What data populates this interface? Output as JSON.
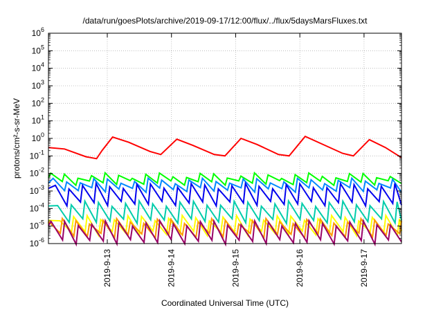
{
  "chart_data": {
    "type": "line",
    "title": "/data/run/goesPlots/archive/2019-09-17/12:00/flux/../flux/5daysMarsFluxes.txt",
    "xlabel": "Coordinated Universal Time (UTC)",
    "ylabel": "protons/cm²-s-sr-MeV",
    "yscale": "log",
    "ylim": [
      1e-06,
      1000000.0
    ],
    "y_ticks": [
      {
        "exp": "-6"
      },
      {
        "exp": "-5"
      },
      {
        "exp": "-4"
      },
      {
        "exp": "-3"
      },
      {
        "exp": "-2"
      },
      {
        "exp": "-1"
      },
      {
        "exp": "0"
      },
      {
        "exp": "1"
      },
      {
        "exp": "2"
      },
      {
        "exp": "3"
      },
      {
        "exp": "4"
      },
      {
        "exp": "5"
      },
      {
        "exp": "6"
      }
    ],
    "xlim": [
      "2019-09-12T02:00",
      "2019-09-17T14:00"
    ],
    "x_ticks": [
      "2019-9-13",
      "2019-9-14",
      "2019-9-15",
      "2019-9-16",
      "2019-9-17"
    ],
    "grid": true,
    "legend": "none",
    "series": [
      {
        "color": "#ff0000",
        "kind": "smooth",
        "x": [
          "2019-09-12T02:00",
          "2019-09-12T08:00",
          "2019-09-12T16:00",
          "2019-09-12T20:00",
          "2019-09-12T22:00",
          "2019-09-13T02:00",
          "2019-09-13T08:00",
          "2019-09-13T16:00",
          "2019-09-13T20:00",
          "2019-09-14T02:00",
          "2019-09-14T08:00",
          "2019-09-14T16:00",
          "2019-09-14T20:00",
          "2019-09-15T02:00",
          "2019-09-15T08:00",
          "2019-09-15T16:00",
          "2019-09-15T20:00",
          "2019-09-16T02:00",
          "2019-09-16T08:00",
          "2019-09-16T16:00",
          "2019-09-16T20:00",
          "2019-09-17T02:00",
          "2019-09-17T08:00",
          "2019-09-17T14:00"
        ],
        "y": [
          0.3,
          0.25,
          0.09,
          0.07,
          0.2,
          1.2,
          0.6,
          0.18,
          0.12,
          0.9,
          0.4,
          0.12,
          0.1,
          1.0,
          0.45,
          0.12,
          0.1,
          1.3,
          0.5,
          0.14,
          0.1,
          0.85,
          0.3,
          0.08
        ]
      },
      {
        "color": "#00ff00",
        "kind": "sawtooth",
        "peak": 0.008,
        "trough": 0.003
      },
      {
        "color": "#0088ff",
        "kind": "sawtooth",
        "peak": 0.004,
        "trough": 0.0012
      },
      {
        "color": "#0000ee",
        "kind": "sawtooth",
        "peak": 0.002,
        "trough": 0.0002
      },
      {
        "color": "#00ccaa",
        "kind": "sawtooth",
        "peak": 0.0002,
        "trough": 2e-05
      },
      {
        "color": "#ffff00",
        "kind": "sawtooth",
        "peak": 3e-05,
        "trough": 4e-06
      },
      {
        "color": "#ff9900",
        "kind": "sawtooth",
        "peak": 2e-05,
        "trough": 3e-06
      },
      {
        "color": "#990066",
        "kind": "sawtooth",
        "peak": 1.5e-05,
        "trough": 1.3e-06
      }
    ]
  }
}
